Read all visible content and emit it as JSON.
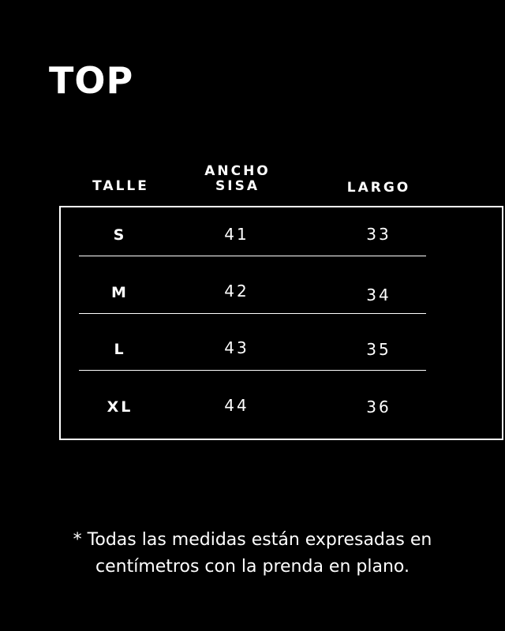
{
  "title": "TOP",
  "table": {
    "headers": {
      "size": "TALLE",
      "width": "ANCHO\nSISA",
      "length": "LARGO"
    },
    "rows": [
      {
        "size": "S",
        "width": "41",
        "length": "33"
      },
      {
        "size": "M",
        "width": "42",
        "length": "34"
      },
      {
        "size": "L",
        "width": "43",
        "length": "35"
      },
      {
        "size": "XL",
        "width": "44",
        "length": "36"
      }
    ]
  },
  "note": "* Todas las medidas están expresadas en centímetros con la prenda en plano.",
  "colors": {
    "background": "#000000",
    "foreground": "#ffffff"
  }
}
